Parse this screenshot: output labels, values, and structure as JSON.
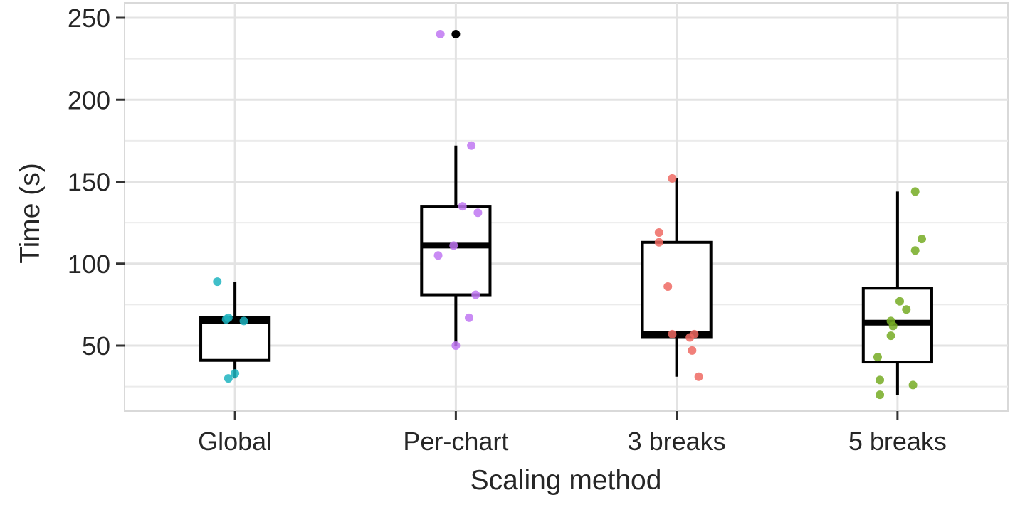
{
  "chart_data": {
    "type": "box",
    "title": "",
    "xlabel": "Scaling method",
    "ylabel": "Time (s)",
    "categories": [
      "Global",
      "Per-chart",
      "3 breaks",
      "5 breaks"
    ],
    "ylim": [
      10,
      250
    ],
    "yticks": [
      50,
      100,
      150,
      200,
      250
    ],
    "grid": true,
    "legend": "none",
    "boxes": [
      {
        "category": "Global",
        "whisker_low": 30,
        "q1": 41,
        "median": 65,
        "q3": 67,
        "whisker_high": 89,
        "outliers": [],
        "color": "#1fb4bf",
        "points": [
          [
            -0.08,
            89
          ],
          [
            -0.03,
            67
          ],
          [
            -0.04,
            66
          ],
          [
            0.04,
            65
          ],
          [
            0.0,
            33
          ],
          [
            -0.03,
            30
          ]
        ]
      },
      {
        "category": "Per-chart",
        "whisker_low": 50,
        "q1": 81,
        "median": 111,
        "q3": 135,
        "whisker_high": 172,
        "outliers": [
          240
        ],
        "color": "#c077f2",
        "points": [
          [
            -0.07,
            240
          ],
          [
            0.07,
            172
          ],
          [
            0.03,
            135
          ],
          [
            0.1,
            131
          ],
          [
            -0.01,
            111
          ],
          [
            -0.08,
            105
          ],
          [
            0.09,
            81
          ],
          [
            0.06,
            67
          ],
          [
            0.0,
            50
          ]
        ]
      },
      {
        "category": "3 breaks",
        "whisker_low": 31,
        "q1": 55,
        "median": 57,
        "q3": 113,
        "whisker_high": 152,
        "outliers": [],
        "color": "#ee6a63",
        "points": [
          [
            -0.02,
            152
          ],
          [
            -0.08,
            119
          ],
          [
            -0.08,
            113
          ],
          [
            -0.04,
            86
          ],
          [
            -0.02,
            57
          ],
          [
            0.08,
            57
          ],
          [
            0.06,
            55
          ],
          [
            0.07,
            47
          ],
          [
            0.1,
            31
          ]
        ]
      },
      {
        "category": "5 breaks",
        "whisker_low": 20,
        "q1": 40,
        "median": 64,
        "q3": 85,
        "whisker_high": 144,
        "outliers": [],
        "color": "#76ab23",
        "points": [
          [
            0.08,
            144
          ],
          [
            0.11,
            115
          ],
          [
            0.08,
            108
          ],
          [
            0.01,
            77
          ],
          [
            0.04,
            72
          ],
          [
            -0.03,
            65
          ],
          [
            -0.02,
            62
          ],
          [
            -0.03,
            56
          ],
          [
            -0.09,
            43
          ],
          [
            -0.08,
            29
          ],
          [
            0.07,
            26
          ],
          [
            -0.08,
            20
          ]
        ]
      }
    ]
  }
}
